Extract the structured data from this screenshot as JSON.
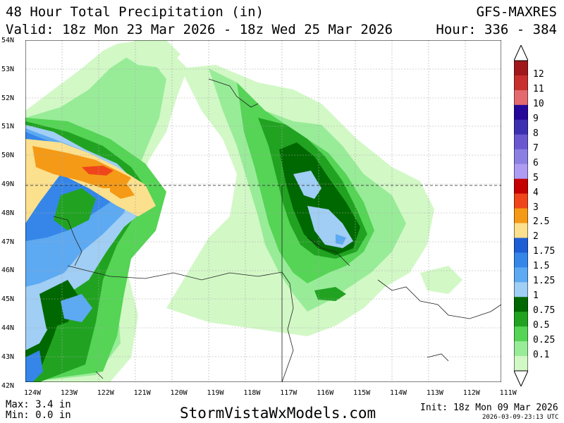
{
  "header": {
    "title": "48 Hour Total Precipitation (in)",
    "valid": "Valid: 18z Mon 23 Mar 2026 - 18z Wed 25 Mar 2026",
    "model": "GFS-MAXRES",
    "hour": "Hour: 336 - 384"
  },
  "axes": {
    "lat_labels": [
      "54N",
      "53N",
      "52N",
      "51N",
      "50N",
      "49N",
      "48N",
      "47N",
      "46N",
      "45N",
      "44N",
      "43N",
      "42N"
    ],
    "lon_labels": [
      "124W",
      "123W",
      "122W",
      "121W",
      "120W",
      "119W",
      "118W",
      "117W",
      "116W",
      "115W",
      "114W",
      "113W",
      "112W",
      "111W"
    ]
  },
  "legend": {
    "labels": [
      "12",
      "11",
      "10",
      "9",
      "8",
      "7",
      "6",
      "5",
      "4",
      "3",
      "2.5",
      "2",
      "1.75",
      "1.5",
      "1.25",
      "1",
      "0.75",
      "0.5",
      "0.25",
      "0.1"
    ],
    "colors": [
      "#a0181c",
      "#c7302e",
      "#e36a6e",
      "#25079a",
      "#3c30b0",
      "#6a58d0",
      "#8b80e2",
      "#ad9cf2",
      "#c40000",
      "#f0451a",
      "#f59a16",
      "#fbe08e",
      "#1e5ed4",
      "#3586e8",
      "#5da9f2",
      "#a0cef4",
      "#006800",
      "#21a321",
      "#55d455",
      "#98ec98",
      "#d2f8c6"
    ]
  },
  "footer": {
    "max": "Max: 3.4 in",
    "min": "Min: 0.0 in",
    "site": "StormVistaWxModels.com",
    "init": "Init: 18z Mon 09 Mar 2026",
    "stamp": "2026-03-09-23:13 UTC"
  }
}
